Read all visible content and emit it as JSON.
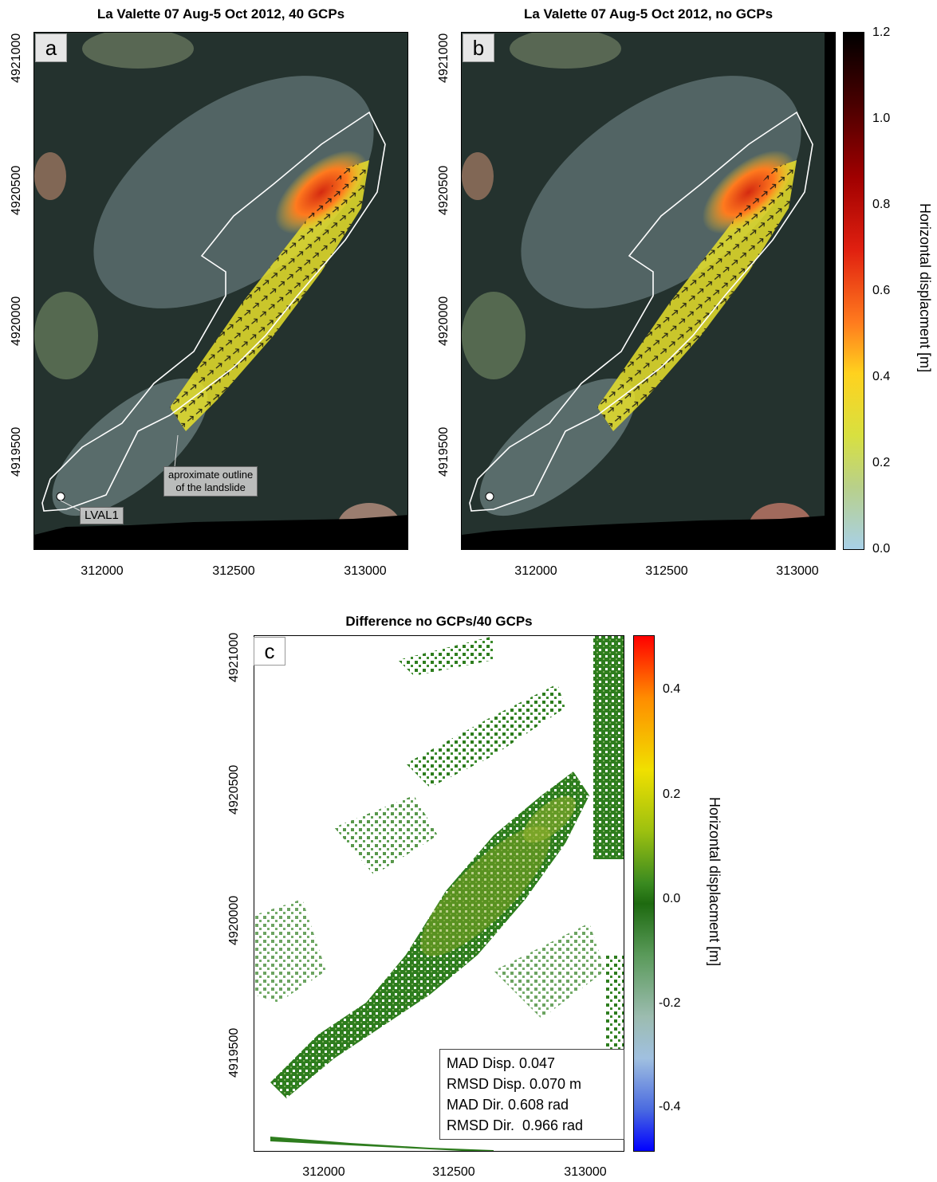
{
  "panels": [
    {
      "id": "a",
      "title": "La Valette 07 Aug-5 Oct 2012, 40 GCPs",
      "letter": "a"
    },
    {
      "id": "b",
      "title": "La Valette 07 Aug-5 Oct 2012, no GCPs",
      "letter": "b"
    },
    {
      "id": "c",
      "title": "Difference no GCPs/40 GCPs",
      "letter": "c"
    }
  ],
  "x_ticks": [
    "312000",
    "312500",
    "313000"
  ],
  "y_ticks": [
    "4921000",
    "4920500",
    "4920000",
    "4919500"
  ],
  "colorbar_top": {
    "label": "Horizontal displacment [m]",
    "ticks": [
      "1.2",
      "1.0",
      "0.8",
      "0.6",
      "0.4",
      "0.2",
      "0.0"
    ]
  },
  "colorbar_bottom": {
    "label": "Horizontal displacment [m]",
    "ticks": [
      "0.4",
      "0.2",
      "0.0",
      "-0.2",
      "-0.4"
    ]
  },
  "annotations": {
    "outline_label_line1": "aproximate outline",
    "outline_label_line2": "of the landslide",
    "station": "LVAL1"
  },
  "stats": {
    "line1": "MAD Disp. 0.047",
    "line2": "RMSD Disp. 0.070 m",
    "line3": "MAD Dir. 0.608 rad",
    "line4": "RMSD Dir.  0.966 rad"
  },
  "colors": {
    "forest": "#1e2a28",
    "meadow": "#6b8060",
    "outline": "#ffffff",
    "diff_green": "#2e7d1e"
  }
}
